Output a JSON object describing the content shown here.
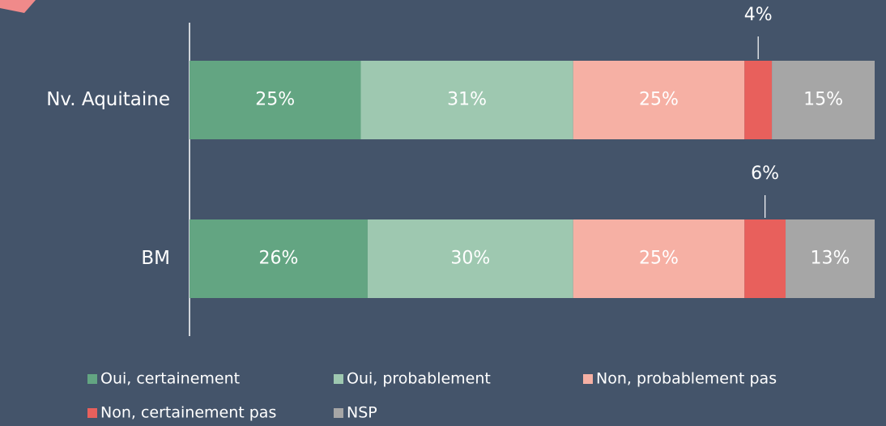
{
  "chart_data": {
    "type": "stacked-bar-horizontal",
    "categories": [
      "Nv. Aquitaine",
      "BM"
    ],
    "xlim": [
      0,
      100
    ],
    "series": [
      {
        "name": "Oui, certainement",
        "color": "#63a582",
        "values": [
          25,
          26
        ],
        "value_labels": [
          "25%",
          "26%"
        ]
      },
      {
        "name": "Oui, probablement",
        "color": "#9ec8b0",
        "values": [
          31,
          30
        ],
        "value_labels": [
          "31%",
          "30%"
        ]
      },
      {
        "name": "Non, probablement pas",
        "color": "#f6b0a4",
        "values": [
          25,
          25
        ],
        "value_labels": [
          "25%",
          "25%"
        ]
      },
      {
        "name": "Non, certainement pas",
        "color": "#e8605c",
        "values": [
          4,
          6
        ],
        "value_labels": [
          "4%",
          "6%"
        ]
      },
      {
        "name": "NSP",
        "color": "#a6a6a6",
        "values": [
          15,
          13
        ],
        "value_labels": [
          "15%",
          "13%"
        ]
      }
    ],
    "legend": "bottom"
  }
}
